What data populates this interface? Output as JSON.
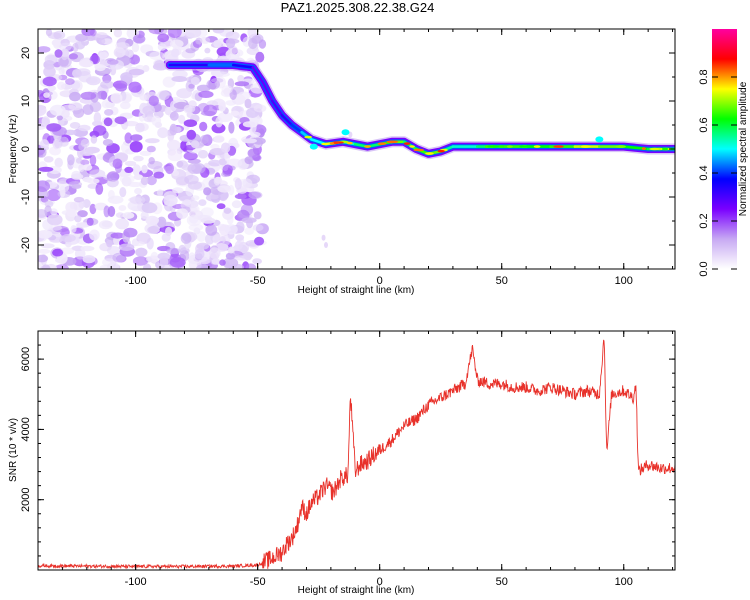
{
  "title": "PAZ1.2025.308.22.38.G24",
  "colors": {
    "axis": "#000000",
    "snr_line": "#e8312a"
  },
  "chart_data": [
    {
      "type": "heatmap",
      "name": "spectrogram",
      "xlabel": "Height of straight line (km)",
      "ylabel": "Frequency (Hz)",
      "xlim": [
        -140,
        121
      ],
      "ylim": [
        -25,
        25
      ],
      "xticks": [
        -100,
        -50,
        0,
        50,
        100
      ],
      "yticks": [
        20,
        10,
        0,
        -10,
        -20
      ],
      "colorbar": {
        "label": "Normalized spectral amplitude",
        "range": [
          0,
          1
        ],
        "ticks": [
          0.0,
          0.2,
          0.4,
          0.6,
          0.8
        ],
        "tick_labels": [
          "0.0",
          "0.2",
          "0.4",
          "0.6",
          "0.8"
        ],
        "colormap": [
          "#ffffff",
          "#c7a9f3",
          "#7a00ff",
          "#0000ff",
          "#00ffff",
          "#00ff00",
          "#ffff00",
          "#ff0000",
          "#ff00a0"
        ]
      },
      "ridge": [
        {
          "x": -86,
          "y": 17.5,
          "a": 0.22
        },
        {
          "x": -70,
          "y": 17.5,
          "a": 0.45
        },
        {
          "x": -60,
          "y": 17.5,
          "a": 0.4
        },
        {
          "x": -52,
          "y": 17,
          "a": 0.3
        },
        {
          "x": -48,
          "y": 14,
          "a": 0.25
        },
        {
          "x": -44,
          "y": 10,
          "a": 0.3
        },
        {
          "x": -40,
          "y": 7,
          "a": 0.3
        },
        {
          "x": -36,
          "y": 5,
          "a": 0.35
        },
        {
          "x": -32,
          "y": 3.5,
          "a": 0.45
        },
        {
          "x": -28,
          "y": 2,
          "a": 0.5
        },
        {
          "x": -22,
          "y": 1,
          "a": 0.5
        },
        {
          "x": -15,
          "y": 1.5,
          "a": 0.5
        },
        {
          "x": -10,
          "y": 1,
          "a": 0.55
        },
        {
          "x": -5,
          "y": 0.5,
          "a": 0.6
        },
        {
          "x": 0,
          "y": 1,
          "a": 0.55
        },
        {
          "x": 5,
          "y": 1.5,
          "a": 0.75
        },
        {
          "x": 10,
          "y": 1.5,
          "a": 0.6
        },
        {
          "x": 15,
          "y": 0,
          "a": 0.55
        },
        {
          "x": 20,
          "y": -1,
          "a": 0.75
        },
        {
          "x": 25,
          "y": -0.5,
          "a": 0.6
        },
        {
          "x": 30,
          "y": 0.5,
          "a": 0.5
        },
        {
          "x": 40,
          "y": 0.5,
          "a": 0.55
        },
        {
          "x": 50,
          "y": 0.5,
          "a": 0.6
        },
        {
          "x": 60,
          "y": 0.5,
          "a": 0.7
        },
        {
          "x": 70,
          "y": 0.5,
          "a": 0.55
        },
        {
          "x": 80,
          "y": 0.5,
          "a": 0.75
        },
        {
          "x": 90,
          "y": 0.5,
          "a": 0.7
        },
        {
          "x": 100,
          "y": 0.5,
          "a": 0.65
        },
        {
          "x": 110,
          "y": 0,
          "a": 0.6
        },
        {
          "x": 121,
          "y": 0,
          "a": 0.6
        }
      ],
      "noise_region": {
        "x": [
          -140,
          -48
        ],
        "y": [
          -25,
          25
        ]
      }
    },
    {
      "type": "line",
      "name": "snr",
      "xlabel": "Height of straight line (km)",
      "ylabel": "SNR (10 * v/v)",
      "xlim": [
        -140,
        121
      ],
      "ylim": [
        0,
        6800
      ],
      "xticks": [
        -100,
        -50,
        0,
        50,
        100
      ],
      "yticks": [
        6000,
        4000,
        2000
      ],
      "series": [
        {
          "name": "SNR",
          "x": [
            -140,
            -120,
            -100,
            -80,
            -60,
            -50,
            -45,
            -40,
            -38,
            -36,
            -34,
            -32,
            -30,
            -28,
            -25,
            -22,
            -19,
            -16,
            -13,
            -12,
            -10,
            -8,
            -5,
            -2,
            0,
            5,
            10,
            15,
            20,
            25,
            30,
            35,
            38,
            40,
            45,
            50,
            55,
            60,
            65,
            70,
            75,
            80,
            85,
            90,
            92,
            93,
            95,
            100,
            104,
            105,
            106,
            110,
            115,
            121
          ],
          "y": [
            120,
            110,
            100,
            100,
            110,
            140,
            300,
            500,
            750,
            900,
            1200,
            1800,
            1600,
            1900,
            2100,
            2400,
            2200,
            2600,
            2700,
            5000,
            2800,
            3000,
            3100,
            3300,
            3400,
            3700,
            4100,
            4300,
            4700,
            4900,
            5100,
            5300,
            6300,
            5400,
            5300,
            5300,
            5200,
            5200,
            5100,
            5200,
            5100,
            5000,
            5100,
            5000,
            6700,
            3300,
            5000,
            5100,
            4900,
            5300,
            2800,
            3000,
            2900,
            2900
          ]
        }
      ]
    }
  ]
}
